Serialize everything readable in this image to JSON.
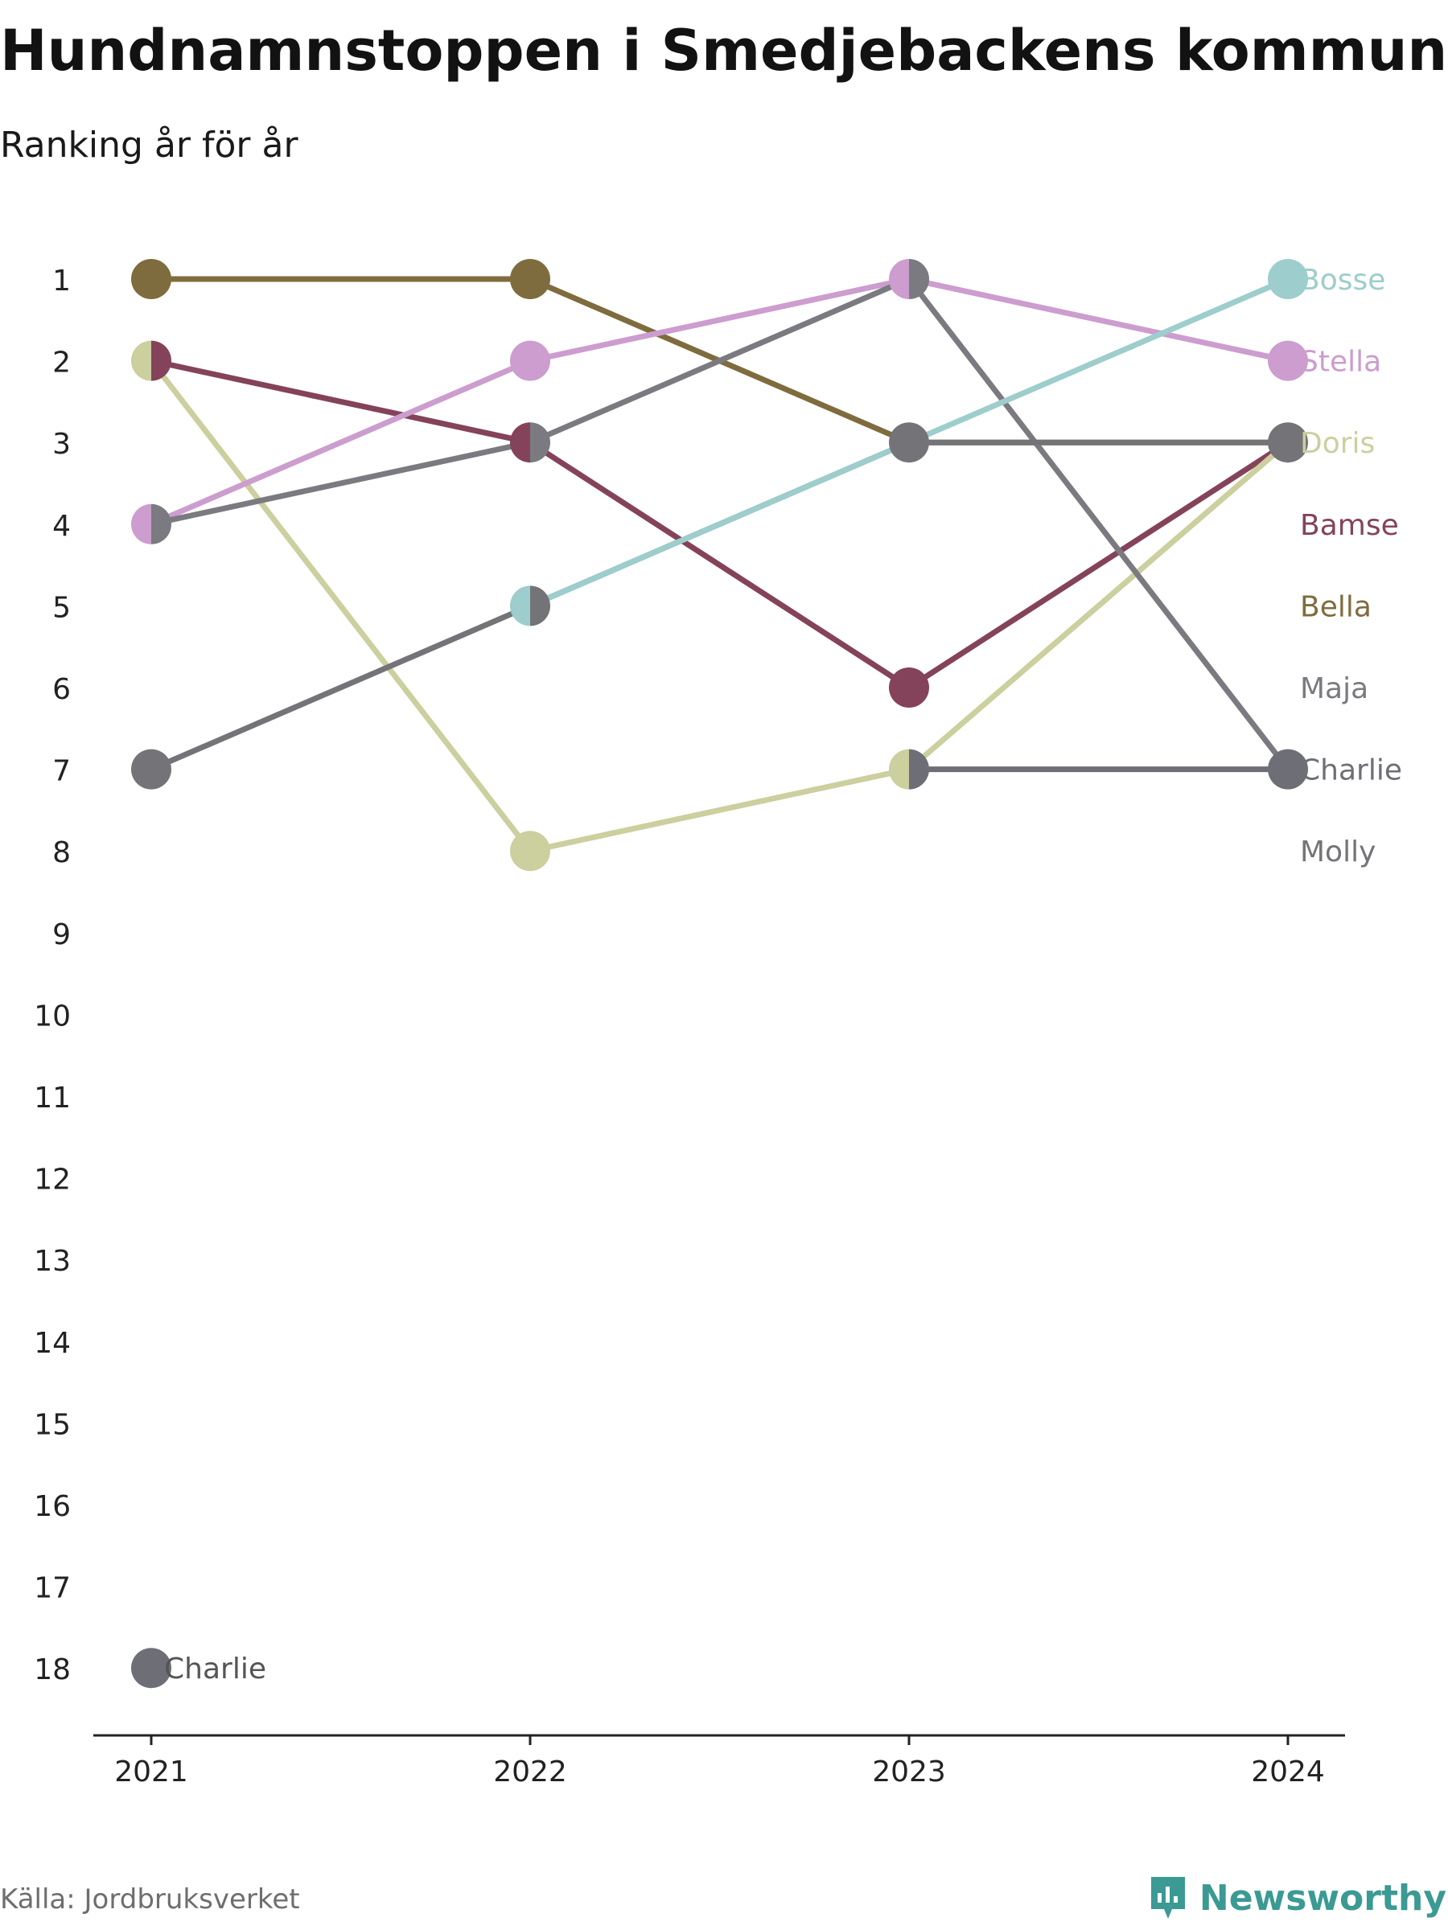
{
  "header": {
    "title": "Hundnamnstoppen i Smedjebackens kommun",
    "subtitle": "Ranking år för år"
  },
  "footer": {
    "source": "Källa: Jordbruksverket",
    "brand": "Newsworthy"
  },
  "colors": {
    "Bella": "#7f6c3e",
    "Bamse": "#84435a",
    "Doris": "#cccf9e",
    "Stella": "#cc9dce",
    "Bosse": "#9dcdcc",
    "Maja": "#7a7a80",
    "Charlie": "#6e6e76",
    "Molly": "#747478",
    "axis": "#222222",
    "brand": "#3b9a93"
  },
  "chart_data": {
    "type": "line",
    "subtype": "bump",
    "x": [
      "2021",
      "2022",
      "2023",
      "2024"
    ],
    "y_ticks": [
      "1",
      "2",
      "3",
      "4",
      "5",
      "6",
      "7",
      "8",
      "9",
      "10",
      "11",
      "12",
      "13",
      "14",
      "15",
      "16",
      "17",
      "18"
    ],
    "ylim": [
      1,
      18
    ],
    "y_inverted": true,
    "series": [
      {
        "name": "Bella",
        "ranks": [
          1,
          1,
          3,
          3
        ]
      },
      {
        "name": "Bamse",
        "ranks": [
          2,
          3,
          6,
          3
        ]
      },
      {
        "name": "Doris",
        "ranks": [
          2,
          8,
          7,
          3
        ]
      },
      {
        "name": "Stella",
        "ranks": [
          4,
          2,
          1,
          2
        ]
      },
      {
        "name": "Maja",
        "ranks": [
          4,
          3,
          1,
          7
        ]
      },
      {
        "name": "Molly",
        "ranks": [
          7,
          5,
          3,
          3
        ]
      },
      {
        "name": "Bosse",
        "ranks": [
          null,
          5,
          3,
          1
        ]
      },
      {
        "name": "Charlie",
        "ranks": [
          18,
          null,
          7,
          7
        ]
      }
    ],
    "end_labels": [
      "Bosse",
      "Stella",
      "Doris",
      "Bamse",
      "Bella",
      "Maja",
      "Charlie",
      "Molly"
    ],
    "point_labels": [
      {
        "text": "Charlie",
        "series": "Charlie",
        "year": "2021"
      }
    ],
    "split_markers": [
      {
        "year": "2021",
        "rank": 2,
        "left": "Doris",
        "right": "Bamse"
      },
      {
        "year": "2021",
        "rank": 4,
        "left": "Stella",
        "right": "Maja"
      },
      {
        "year": "2022",
        "rank": 3,
        "left": "Bamse",
        "right": "Maja"
      },
      {
        "year": "2022",
        "rank": 5,
        "left": "Bosse",
        "right": "Molly"
      },
      {
        "year": "2023",
        "rank": 1,
        "left": "Stella",
        "right": "Maja"
      },
      {
        "year": "2023",
        "rank": 7,
        "left": "Doris",
        "right": "Charlie"
      }
    ],
    "solid_markers": [
      {
        "year": "2021",
        "rank": 1,
        "series": "Bella"
      },
      {
        "year": "2021",
        "rank": 7,
        "series": "Molly"
      },
      {
        "year": "2021",
        "rank": 18,
        "series": "Charlie"
      },
      {
        "year": "2022",
        "rank": 1,
        "series": "Bella"
      },
      {
        "year": "2022",
        "rank": 2,
        "series": "Stella"
      },
      {
        "year": "2022",
        "rank": 8,
        "series": "Doris"
      },
      {
        "year": "2023",
        "rank": 3,
        "series": "Molly"
      },
      {
        "year": "2023",
        "rank": 6,
        "series": "Bamse"
      },
      {
        "year": "2024",
        "rank": 1,
        "series": "Bosse"
      },
      {
        "year": "2024",
        "rank": 2,
        "series": "Stella"
      },
      {
        "year": "2024",
        "rank": 3,
        "series": "Molly"
      },
      {
        "year": "2024",
        "rank": 7,
        "series": "Charlie"
      }
    ]
  }
}
